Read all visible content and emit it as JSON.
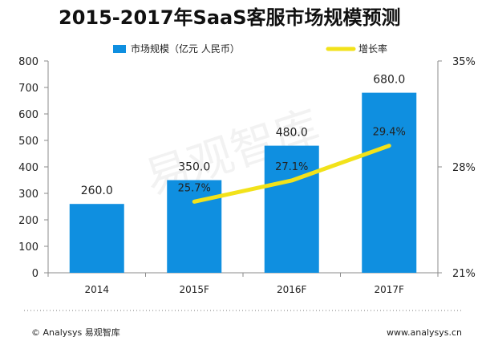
{
  "chart_data": {
    "type": "bar",
    "title": "2015-2017年SaaS客服市场规模预测",
    "categories": [
      "2014",
      "2015F",
      "2016F",
      "2017F"
    ],
    "series": [
      {
        "name": "市场规模（亿元 人民币）",
        "type": "bar",
        "axis": "left",
        "values": [
          260.0,
          350.0,
          480.0,
          680.0
        ],
        "value_labels": [
          "260.0",
          "350.0",
          "480.0",
          "680.0"
        ]
      },
      {
        "name": "增长率",
        "type": "line",
        "axis": "right",
        "values": [
          null,
          25.7,
          27.1,
          29.4
        ],
        "value_labels": [
          "",
          "25.7%",
          "27.1%",
          "29.4%"
        ]
      }
    ],
    "left_axis": {
      "ylim": [
        0,
        800
      ],
      "ticks": [
        0,
        100,
        200,
        300,
        400,
        500,
        600,
        700,
        800
      ]
    },
    "right_axis": {
      "ylim": [
        21,
        35
      ],
      "ticks": [
        "21%",
        "28%",
        "35%"
      ]
    },
    "legend": {
      "placement": "top-center"
    },
    "colors": {
      "bar": "#0f8fe0",
      "line": "#f2e21a",
      "axis": "#8b8b8b",
      "text": "#222222",
      "watermark": "#d9d9d9",
      "dotted_line": "#7a7a7a"
    },
    "grid": false,
    "watermark": "易观智库",
    "footer": {
      "left": "© Analysys 易观智库",
      "right": "www.analysys.cn"
    }
  }
}
